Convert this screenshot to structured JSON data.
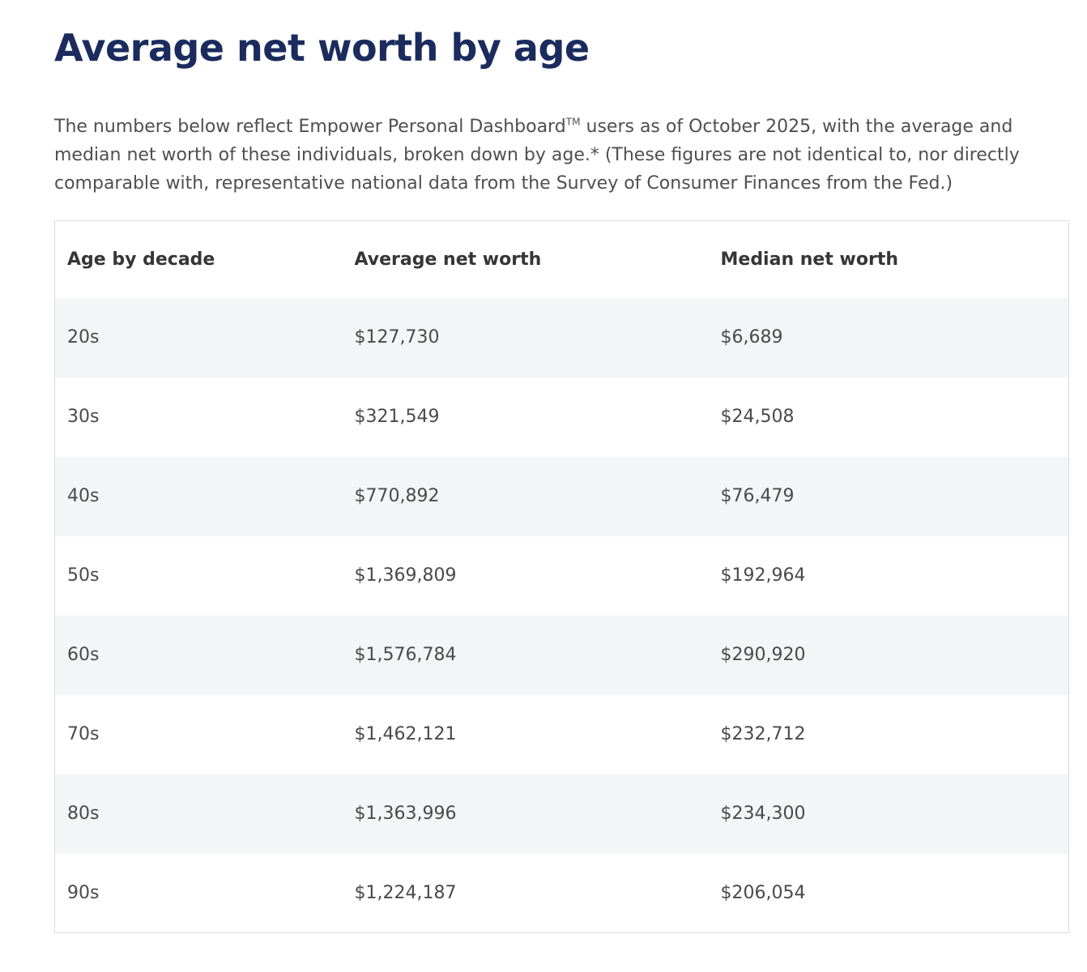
{
  "page": {
    "title": "Average net worth by age",
    "intro": {
      "before_tm": "The numbers below reflect Empower Personal Dashboard",
      "tm_symbol": "TM",
      "after_tm": " users as of October 2025, with the average and median net worth of these individuals, broken down by age.* (These figures are not identical to, nor directly comparable with, representative national data from the Survey of Consumer Finances from the Fed.)"
    }
  },
  "table": {
    "columns": [
      "Age by decade",
      "Average net worth",
      "Median net worth"
    ],
    "rows": [
      {
        "age": "20s",
        "average": "$127,730",
        "median": "$6,689"
      },
      {
        "age": "30s",
        "average": "$321,549",
        "median": "$24,508"
      },
      {
        "age": "40s",
        "average": "$770,892",
        "median": "$76,479"
      },
      {
        "age": "50s",
        "average": "$1,369,809",
        "median": "$192,964"
      },
      {
        "age": "60s",
        "average": "$1,576,784",
        "median": "$290,920"
      },
      {
        "age": "70s",
        "average": "$1,462,121",
        "median": "$232,712"
      },
      {
        "age": "80s",
        "average": "$1,363,996",
        "median": "$234,300"
      },
      {
        "age": "90s",
        "average": "$1,224,187",
        "median": "$206,054"
      }
    ]
  },
  "colors": {
    "title": "#1b2b5e",
    "body_text": "#4f4f4f",
    "header_text": "#363636",
    "cell_text": "#4a4a4a",
    "row_stripe": "#f4f5f6",
    "table_border": "#dcdce0"
  }
}
